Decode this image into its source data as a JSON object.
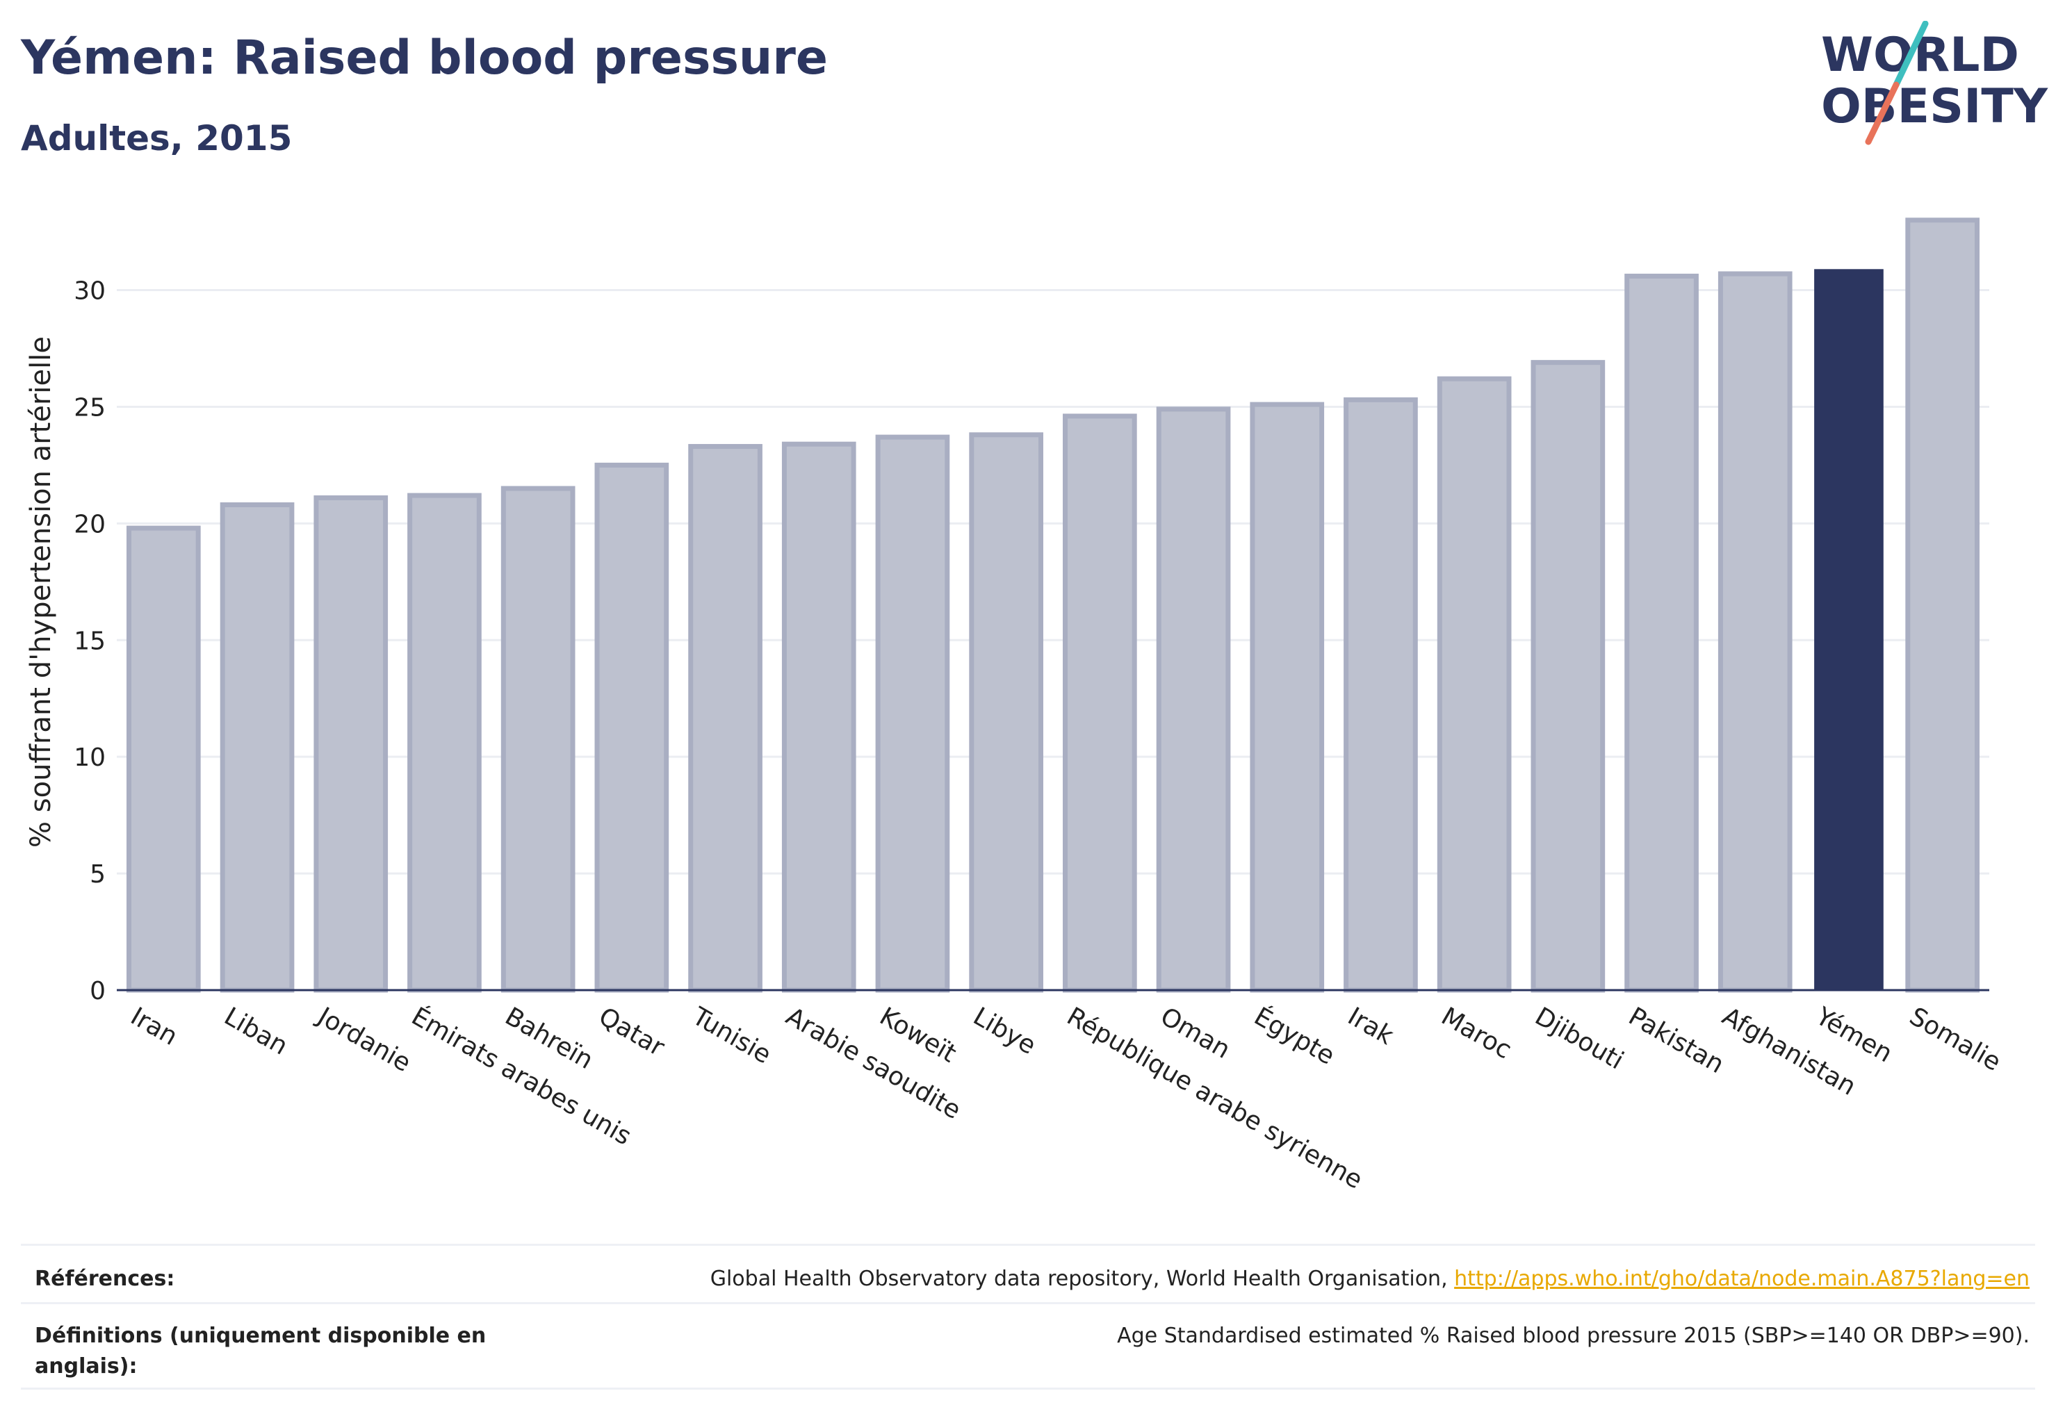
{
  "header": {
    "title": "Yémen: Raised blood pressure",
    "subtitle": "Adultes, 2015"
  },
  "logo": {
    "line1": "WORLD",
    "line2": "OBESITY",
    "slash_colors": [
      "#3fbfbf",
      "#e8735a"
    ]
  },
  "colors": {
    "highlight": "#2c3660",
    "bar_fill": "#bdc1cf",
    "bar_stroke": "#a9aec2",
    "grid": "#ebedf2",
    "text": "#2c3660"
  },
  "chart_data": {
    "type": "bar",
    "title": "Yémen: Raised blood pressure",
    "subtitle": "Adultes, 2015",
    "ylabel": "% souffrant d'hypertension artérielle",
    "xlabel": "",
    "ylim": [
      0,
      33.5
    ],
    "yticks": [
      0,
      5,
      10,
      15,
      20,
      25,
      30
    ],
    "grid": true,
    "highlight": "Yémen",
    "categories": [
      "Iran",
      "Liban",
      "Jordanie",
      "Émirats arabes unis",
      "Bahreïn",
      "Qatar",
      "Tunisie",
      "Arabie saoudite",
      "Koweït",
      "Libye",
      "République arabe syrienne",
      "Oman",
      "Égypte",
      "Irak",
      "Maroc",
      "Djibouti",
      "Pakistan",
      "Afghanistan",
      "Yémen",
      "Somalie"
    ],
    "values": [
      19.8,
      20.8,
      21.1,
      21.2,
      21.5,
      22.5,
      23.3,
      23.4,
      23.7,
      23.8,
      24.6,
      24.9,
      25.1,
      25.3,
      26.2,
      26.9,
      30.6,
      30.7,
      30.9,
      33.0
    ]
  },
  "footer": {
    "references_label": "Références:",
    "references_text": "Global Health Observatory data repository, World Health Organisation, ",
    "references_link": "http://apps.who.int/gho/data/node.main.A875?lang=en",
    "definitions_label_line1": "Définitions (uniquement disponible en",
    "definitions_label_line2": "anglais):",
    "definitions_text": "Age Standardised estimated % Raised blood pressure 2015 (SBP>=140 OR DBP>=90)."
  }
}
